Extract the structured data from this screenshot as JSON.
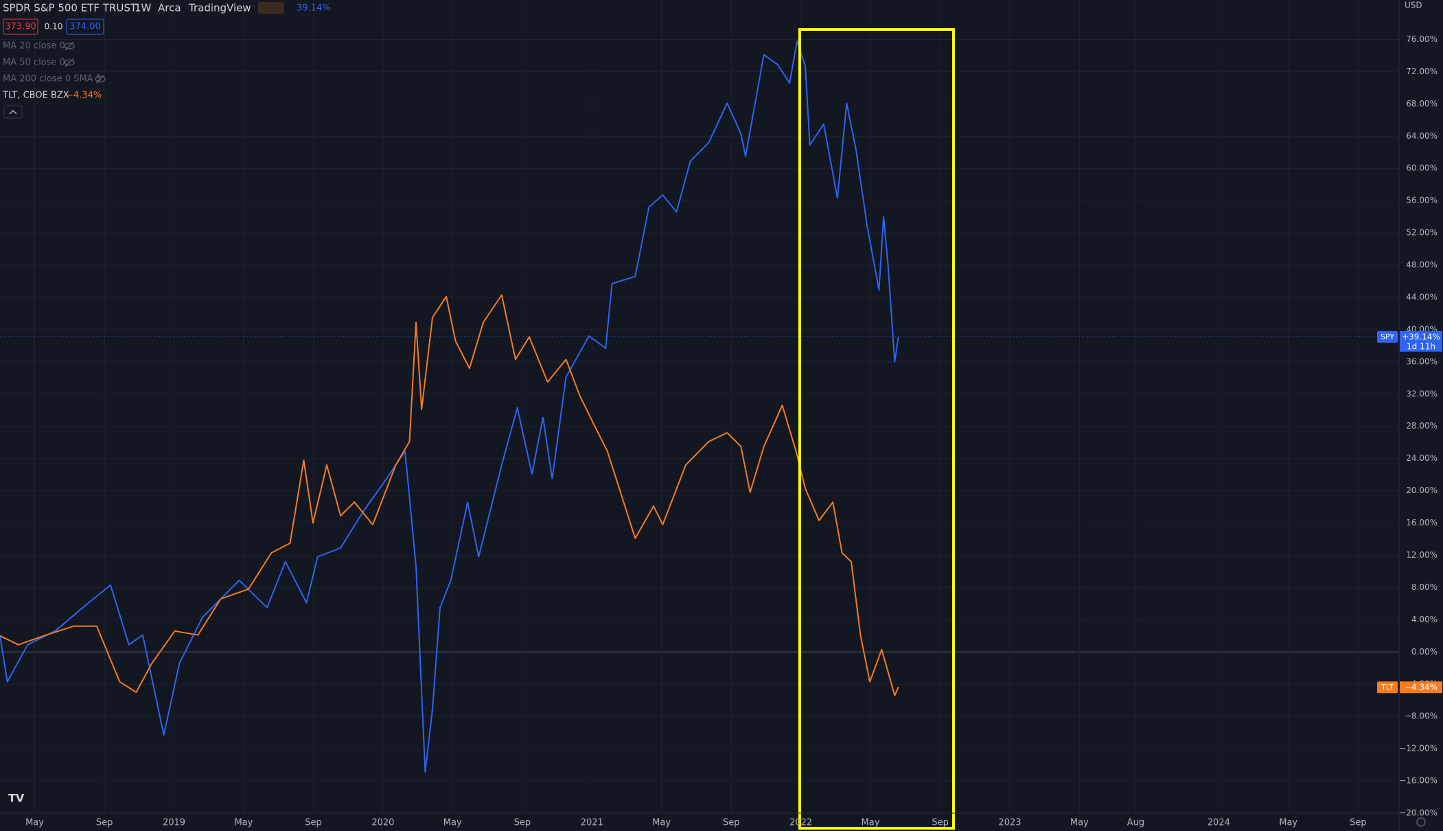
{
  "header": {
    "symbol": "SPDR S&P 500 ETF TRUST",
    "interval": "1W",
    "exchange": "Arca",
    "source": "TradingView",
    "change": "39.14%",
    "ohlc": [
      "373.90",
      "0.10",
      "374.00"
    ],
    "indicators": [
      "MA 20 close 0",
      "MA 50 close 0",
      "MA 200 close 0 SMA 5"
    ],
    "compare": "TLT, CBOE BZX",
    "compare_change": "−4.34%",
    "currency": "USD"
  },
  "chart_data": {
    "type": "line",
    "grid": true,
    "xlim": [
      2018.167,
      2024.863
    ],
    "ylim": [
      -20,
      80.9
    ],
    "xticks": [
      {
        "value": 2018.333,
        "label": "May"
      },
      {
        "value": 2018.667,
        "label": "Sep"
      },
      2019,
      {
        "value": 2019.333,
        "label": "May"
      },
      {
        "value": 2019.667,
        "label": "Sep"
      },
      2020,
      {
        "value": 2020.333,
        "label": "May"
      },
      {
        "value": 2020.667,
        "label": "Sep"
      },
      2021,
      {
        "value": 2021.333,
        "label": "May"
      },
      {
        "value": 2021.667,
        "label": "Sep"
      },
      2022,
      {
        "value": 2022.333,
        "label": "May"
      },
      {
        "value": 2022.667,
        "label": "Sep"
      },
      2023,
      {
        "value": 2023.333,
        "label": "May"
      },
      {
        "value": 2023.603,
        "label": "Aug"
      },
      2024,
      {
        "value": 2024.333,
        "label": "May"
      },
      {
        "value": 2024.667,
        "label": "Sep"
      }
    ],
    "yticks": [
      {
        "value": -20,
        "label": "−20.00%"
      },
      {
        "value": -16,
        "label": "−16.00%"
      },
      {
        "value": -12,
        "label": "−12.00%"
      },
      {
        "value": -8,
        "label": "−8.00%"
      },
      {
        "value": -4,
        "label": "−4.00%"
      },
      {
        "value": 0,
        "label": "0.00%"
      },
      {
        "value": 4,
        "label": "4.00%"
      },
      {
        "value": 8,
        "label": "8.00%"
      },
      {
        "value": 12,
        "label": "12.00%"
      },
      {
        "value": 16,
        "label": "16.00%"
      },
      {
        "value": 20,
        "label": "20.00%"
      },
      {
        "value": 24,
        "label": "24.00%"
      },
      {
        "value": 28,
        "label": "28.00%"
      },
      {
        "value": 32,
        "label": "32.00%"
      },
      {
        "value": 36,
        "label": "36.00%"
      },
      {
        "value": 40,
        "label": "40.00%"
      },
      {
        "value": 44,
        "label": "44.00%"
      },
      {
        "value": 48,
        "label": "48.00%"
      },
      {
        "value": 52,
        "label": "52.00%"
      },
      {
        "value": 56,
        "label": "56.00%"
      },
      {
        "value": 60,
        "label": "60.00%"
      },
      {
        "value": 64,
        "label": "64.00%"
      },
      {
        "value": 68,
        "label": "68.00%"
      },
      {
        "value": 72,
        "label": "72.00%"
      },
      {
        "value": 76,
        "label": "76.00%"
      }
    ],
    "series": [
      {
        "name": "SPY",
        "color": "#2f63f0",
        "price_label": "+39.14%",
        "countdown": "1d 11h",
        "x": [
          2018.167,
          2018.202,
          2018.299,
          2018.431,
          2018.563,
          2018.696,
          2018.784,
          2018.85,
          2018.951,
          2019.026,
          2019.136,
          2019.312,
          2019.445,
          2019.533,
          2019.634,
          2019.687,
          2019.797,
          2019.907,
          2020.017,
          2020.105,
          2020.127,
          2020.158,
          2020.202,
          2020.237,
          2020.273,
          2020.325,
          2020.405,
          2020.458,
          2020.568,
          2020.643,
          2020.713,
          2020.766,
          2020.81,
          2020.876,
          2020.986,
          2021.066,
          2021.096,
          2021.207,
          2021.273,
          2021.339,
          2021.405,
          2021.471,
          2021.559,
          2021.647,
          2021.713,
          2021.735,
          2021.823,
          2021.889,
          2021.946,
          2021.982,
          2022.021,
          2022.043,
          2022.109,
          2022.175,
          2022.219,
          2022.264,
          2022.317,
          2022.374,
          2022.396,
          2022.418,
          2022.449,
          2022.467
        ],
        "values": [
          2.0,
          -3.7,
          0.9,
          2.6,
          5.5,
          8.3,
          0.9,
          2.1,
          -10.3,
          -1.4,
          4.3,
          8.9,
          5.5,
          11.2,
          6.1,
          11.8,
          12.9,
          17.5,
          21.5,
          24.9,
          19.2,
          10.6,
          -14.9,
          -7.1,
          5.5,
          8.9,
          18.6,
          11.8,
          23.2,
          30.3,
          22.1,
          29.1,
          21.5,
          34.1,
          39.2,
          37.7,
          45.7,
          46.6,
          55.2,
          56.7,
          54.6,
          60.9,
          63.2,
          68.1,
          64.3,
          61.5,
          74.1,
          72.9,
          70.6,
          75.8,
          72.7,
          62.9,
          65.5,
          56.3,
          68.1,
          62.3,
          52.9,
          44.9,
          54.0,
          47.8,
          36.0,
          39.14
        ]
      },
      {
        "name": "TLT",
        "color": "#f57c1f",
        "price_label": "−4.34%",
        "x": [
          2018.167,
          2018.255,
          2018.387,
          2018.519,
          2018.63,
          2018.74,
          2018.819,
          2018.894,
          2019.004,
          2019.114,
          2019.224,
          2019.356,
          2019.466,
          2019.555,
          2019.621,
          2019.665,
          2019.731,
          2019.797,
          2019.863,
          2019.951,
          2020.061,
          2020.127,
          2020.158,
          2020.185,
          2020.237,
          2020.303,
          2020.347,
          2020.414,
          2020.48,
          2020.568,
          2020.634,
          2020.7,
          2020.788,
          2020.876,
          2020.942,
          2021.008,
          2021.074,
          2021.207,
          2021.295,
          2021.339,
          2021.449,
          2021.559,
          2021.647,
          2021.713,
          2021.757,
          2021.823,
          2021.911,
          2021.977,
          2022.021,
          2022.087,
          2022.153,
          2022.197,
          2022.241,
          2022.285,
          2022.33,
          2022.387,
          2022.449,
          2022.467
        ],
        "values": [
          2.0,
          0.9,
          2.1,
          3.2,
          3.2,
          -3.7,
          -5.0,
          -1.4,
          2.6,
          2.1,
          6.6,
          7.8,
          12.3,
          13.5,
          23.8,
          16.0,
          23.2,
          16.9,
          18.6,
          15.8,
          23.2,
          26.1,
          40.9,
          30.1,
          41.5,
          44.1,
          38.6,
          35.2,
          40.9,
          44.3,
          36.3,
          39.1,
          33.5,
          36.3,
          31.8,
          28.3,
          24.9,
          14.1,
          18.1,
          15.8,
          23.2,
          26.1,
          27.2,
          25.5,
          19.8,
          25.5,
          30.6,
          24.9,
          20.3,
          16.3,
          18.6,
          12.3,
          11.2,
          2.1,
          -3.7,
          0.3,
          -5.4,
          -4.34
        ]
      }
    ]
  }
}
